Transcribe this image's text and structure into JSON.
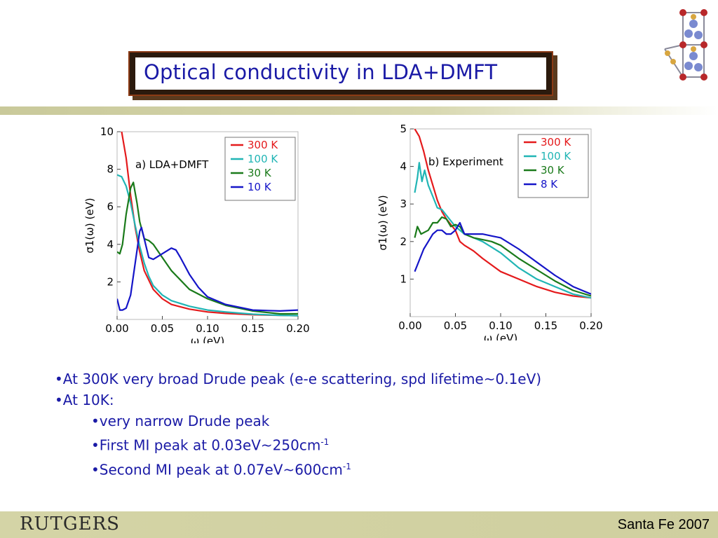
{
  "slide": {
    "title": "Optical conductivity in LDA+DMFT",
    "bullets": [
      "•At 300K very broad Drude peak (e-e scattering, spd lifetime~0.1eV)",
      "•At 10K:"
    ],
    "sub_bullets": [
      "•very narrow Drude peak",
      "•First MI peak at 0.03eV~250cm",
      "•Second MI peak at 0.07eV~600cm"
    ],
    "superscript": "-1",
    "footer_logo": "RUTGERS",
    "footer_right": "Santa Fe 2007"
  },
  "colors": {
    "title_text": "#1a1aa6",
    "bullet_text": "#1a1aa6",
    "series_red": "#e41a1c",
    "series_cyan": "#21b5b5",
    "series_green": "#1a7a1a",
    "series_blue": "#1515c8"
  },
  "chart_data": [
    {
      "type": "line",
      "annotation": "a) LDA+DMFT",
      "xlabel": "ω (eV)",
      "ylabel": "σ1(ω) (eV)",
      "xlim": [
        0,
        0.2
      ],
      "ylim": [
        0,
        10
      ],
      "xticks": [
        "0.00",
        "0.05",
        "0.10",
        "0.15",
        "0.20"
      ],
      "yticks": [
        "2",
        "4",
        "6",
        "8",
        "10"
      ],
      "legend_position": "top-right",
      "series": [
        {
          "name": "300 K",
          "color": "#e41a1c",
          "x": [
            0.005,
            0.01,
            0.015,
            0.02,
            0.025,
            0.03,
            0.04,
            0.05,
            0.06,
            0.08,
            0.1,
            0.12,
            0.15,
            0.18,
            0.2
          ],
          "y": [
            10,
            8.6,
            6.6,
            4.9,
            3.6,
            2.6,
            1.6,
            1.1,
            0.8,
            0.55,
            0.4,
            0.32,
            0.25,
            0.22,
            0.2
          ]
        },
        {
          "name": "100 K",
          "color": "#21b5b5",
          "x": [
            0,
            0.005,
            0.01,
            0.015,
            0.02,
            0.025,
            0.03,
            0.035,
            0.04,
            0.05,
            0.06,
            0.08,
            0.1,
            0.12,
            0.15,
            0.18,
            0.2
          ],
          "y": [
            7.7,
            7.6,
            7.1,
            6.2,
            5,
            3.9,
            3,
            2.3,
            1.8,
            1.3,
            1,
            0.7,
            0.5,
            0.4,
            0.28,
            0.22,
            0.2
          ]
        },
        {
          "name": "30 K",
          "color": "#1a7a1a",
          "x": [
            0,
            0.003,
            0.006,
            0.01,
            0.015,
            0.018,
            0.022,
            0.025,
            0.03,
            0.035,
            0.04,
            0.05,
            0.06,
            0.08,
            0.1,
            0.12,
            0.15,
            0.18,
            0.2
          ],
          "y": [
            3.6,
            3.5,
            4,
            5.6,
            7,
            7.3,
            6.2,
            5.2,
            4.3,
            4.2,
            4,
            3.3,
            2.6,
            1.6,
            1.1,
            0.75,
            0.45,
            0.3,
            0.3
          ]
        },
        {
          "name": "10 K",
          "color": "#1515c8",
          "x": [
            0,
            0.003,
            0.006,
            0.01,
            0.015,
            0.02,
            0.025,
            0.027,
            0.03,
            0.035,
            0.04,
            0.05,
            0.06,
            0.065,
            0.07,
            0.08,
            0.09,
            0.1,
            0.12,
            0.15,
            0.18,
            0.2
          ],
          "y": [
            1.1,
            0.5,
            0.5,
            0.6,
            1.3,
            3,
            4.7,
            4.9,
            4.3,
            3.3,
            3.2,
            3.5,
            3.8,
            3.7,
            3.3,
            2.4,
            1.7,
            1.2,
            0.8,
            0.5,
            0.45,
            0.5
          ]
        }
      ]
    },
    {
      "type": "line",
      "annotation": "b) Experiment",
      "xlabel": "ω (eV)",
      "ylabel": "σ1(ω) (eV)",
      "xlim": [
        0,
        0.2
      ],
      "ylim": [
        0,
        5
      ],
      "xticks": [
        "0.00",
        "0.05",
        "0.10",
        "0.15",
        "0.20"
      ],
      "yticks": [
        "1",
        "2",
        "3",
        "4",
        "5"
      ],
      "legend_position": "top-right",
      "series": [
        {
          "name": "300 K",
          "color": "#e41a1c",
          "x": [
            0.005,
            0.01,
            0.015,
            0.02,
            0.025,
            0.03,
            0.035,
            0.04,
            0.05,
            0.055,
            0.06,
            0.07,
            0.08,
            0.1,
            0.12,
            0.14,
            0.16,
            0.18,
            0.2
          ],
          "y": [
            5,
            4.8,
            4.4,
            3.9,
            3.5,
            3.1,
            2.8,
            2.6,
            2.3,
            2,
            1.9,
            1.75,
            1.55,
            1.2,
            1,
            0.8,
            0.65,
            0.55,
            0.5
          ]
        },
        {
          "name": "100 K",
          "color": "#21b5b5",
          "x": [
            0.005,
            0.008,
            0.01,
            0.013,
            0.016,
            0.02,
            0.025,
            0.03,
            0.035,
            0.04,
            0.05,
            0.06,
            0.07,
            0.08,
            0.09,
            0.1,
            0.12,
            0.14,
            0.16,
            0.18,
            0.2
          ],
          "y": [
            3.3,
            3.7,
            4.1,
            3.6,
            3.9,
            3.5,
            3.2,
            2.9,
            2.85,
            2.7,
            2.4,
            2.2,
            2.1,
            2,
            1.85,
            1.7,
            1.3,
            1,
            0.8,
            0.6,
            0.5
          ]
        },
        {
          "name": "30 K",
          "color": "#1a7a1a",
          "x": [
            0.005,
            0.008,
            0.012,
            0.02,
            0.025,
            0.03,
            0.035,
            0.04,
            0.045,
            0.05,
            0.055,
            0.06,
            0.07,
            0.08,
            0.09,
            0.1,
            0.12,
            0.14,
            0.16,
            0.18,
            0.2
          ],
          "y": [
            2.1,
            2.4,
            2.2,
            2.3,
            2.5,
            2.5,
            2.65,
            2.6,
            2.4,
            2.45,
            2.4,
            2.2,
            2.1,
            2.05,
            2,
            1.9,
            1.55,
            1.25,
            0.95,
            0.7,
            0.55
          ]
        },
        {
          "name": "8 K",
          "color": "#1515c8",
          "x": [
            0.005,
            0.01,
            0.015,
            0.02,
            0.025,
            0.03,
            0.035,
            0.04,
            0.045,
            0.05,
            0.055,
            0.06,
            0.07,
            0.08,
            0.09,
            0.1,
            0.12,
            0.14,
            0.16,
            0.18,
            0.2
          ],
          "y": [
            1.2,
            1.5,
            1.8,
            2,
            2.2,
            2.3,
            2.3,
            2.2,
            2.2,
            2.3,
            2.5,
            2.2,
            2.2,
            2.2,
            2.15,
            2.1,
            1.8,
            1.45,
            1.1,
            0.8,
            0.6
          ]
        }
      ]
    }
  ]
}
